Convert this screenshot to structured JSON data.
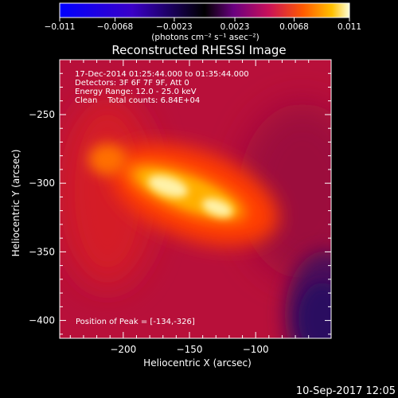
{
  "chart_data": {
    "type": "heatmap",
    "title": "Reconstructed RHESSI Image",
    "colorbar": {
      "ticks": [
        "-0.011",
        "-0.0068",
        "-0.0023",
        "0.0023",
        "0.0068",
        "0.011"
      ],
      "range": [
        -0.011,
        0.011
      ],
      "unit_label": "(photons cm⁻² s⁻¹ asec⁻²)",
      "colormap_stops": [
        "#0000ff",
        "#3a00c8",
        "#000000",
        "#6a0080",
        "#c8105a",
        "#ff5a00",
        "#ffc000",
        "#ffffd8"
      ]
    },
    "annotations": [
      "17-Dec-2014 01:25:44.000 to 01:35:44.000",
      "Detectors: 3F 6F 7F 9F, Att 0",
      "Energy Range: 12.0 - 25.0 keV",
      "Clean    Total counts: 6.84E+04"
    ],
    "peak_label": "Position of Peak = [-134,-326]",
    "peak": [
      -134,
      -326
    ],
    "xlabel": "Heliocentric X (arcsec)",
    "ylabel": "Heliocentric Y (arcsec)",
    "xlim": [
      -248,
      -43
    ],
    "ylim": [
      -413,
      -210
    ],
    "xticks": [
      {
        "value": -200,
        "label": "−200"
      },
      {
        "value": -150,
        "label": "−150"
      },
      {
        "value": -100,
        "label": "−100"
      }
    ],
    "yticks": [
      {
        "value": -250,
        "label": "−250"
      },
      {
        "value": -300,
        "label": "−300"
      },
      {
        "value": -350,
        "label": "−350"
      },
      {
        "value": -400,
        "label": "−400"
      }
    ],
    "sources": [
      {
        "x": -134,
        "y": -326,
        "level": 1.0
      },
      {
        "x": -172,
        "y": -309,
        "level": 1.0
      },
      {
        "x": -213,
        "y": -292,
        "level": 0.7
      }
    ]
  },
  "footer": {
    "timestamp": "10-Sep-2017 12:05"
  }
}
